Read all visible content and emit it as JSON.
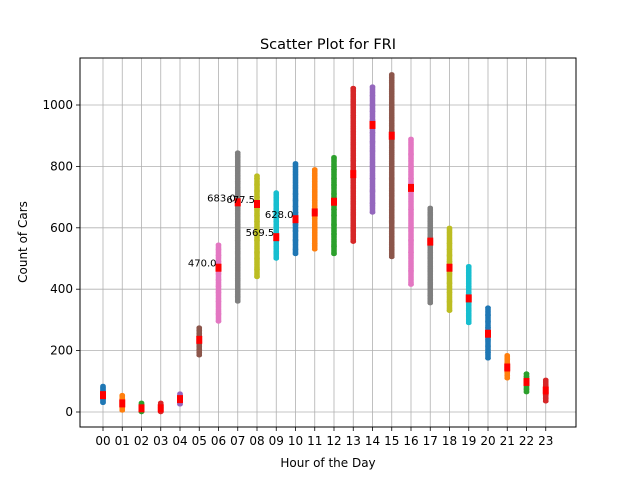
{
  "chart_data": {
    "type": "scatter",
    "title": "Scatter Plot for FRI",
    "xlabel": "Hour of the Day",
    "ylabel": "Count of Cars",
    "categories": [
      "00",
      "01",
      "02",
      "03",
      "04",
      "05",
      "06",
      "07",
      "08",
      "09",
      "10",
      "11",
      "12",
      "13",
      "14",
      "15",
      "16",
      "17",
      "18",
      "19",
      "20",
      "21",
      "22",
      "23"
    ],
    "ylim": [
      -50,
      1150
    ],
    "yticks": [
      0,
      200,
      400,
      600,
      800,
      1000
    ],
    "grid": true,
    "series_colors": [
      "#1f77b4",
      "#ff7f0e",
      "#2ca02c",
      "#d62728",
      "#9467bd",
      "#8c564b",
      "#e377c2",
      "#7f7f7f",
      "#bcbd22",
      "#17becf"
    ],
    "median_color": "#ff0000",
    "series": [
      {
        "hour": "00",
        "min": 30,
        "max": 85,
        "median": 55,
        "values": [
          30,
          35,
          40,
          45,
          50,
          55,
          60,
          65,
          70,
          75,
          80,
          85
        ]
      },
      {
        "hour": "01",
        "min": 5,
        "max": 55,
        "median": 28,
        "values": [
          5,
          10,
          15,
          20,
          25,
          30,
          35,
          40,
          45,
          50,
          55
        ]
      },
      {
        "hour": "02",
        "min": 0,
        "max": 30,
        "median": 12,
        "values": [
          0,
          5,
          10,
          15,
          20,
          25,
          30
        ]
      },
      {
        "hour": "03",
        "min": 0,
        "max": 30,
        "median": 12,
        "values": [
          0,
          5,
          10,
          15,
          20,
          25,
          30
        ]
      },
      {
        "hour": "04",
        "min": 25,
        "max": 60,
        "median": 42,
        "values": [
          25,
          30,
          35,
          40,
          45,
          50,
          55,
          60
        ]
      },
      {
        "hour": "05",
        "min": 185,
        "max": 275,
        "median": 235,
        "values": [
          185,
          195,
          205,
          215,
          225,
          235,
          245,
          255,
          265,
          275
        ]
      },
      {
        "hour": "06",
        "min": 295,
        "max": 545,
        "median": 470,
        "values": [
          295,
          320,
          360,
          390,
          410,
          430,
          450,
          470,
          490,
          510,
          530,
          545
        ]
      },
      {
        "hour": "07",
        "min": 360,
        "max": 845,
        "median": 683,
        "values": [
          360,
          375,
          500,
          520,
          560,
          590,
          610,
          650,
          670,
          690,
          710,
          730,
          750,
          770,
          790,
          845
        ]
      },
      {
        "hour": "08",
        "min": 440,
        "max": 770,
        "median": 677.5,
        "values": [
          440,
          465,
          500,
          520,
          560,
          580,
          620,
          640,
          660,
          680,
          700,
          720,
          740,
          760,
          770
        ]
      },
      {
        "hour": "09",
        "min": 500,
        "max": 715,
        "median": 569.5,
        "values": [
          500,
          520,
          540,
          560,
          580,
          600,
          620,
          640,
          660,
          675,
          715
        ]
      },
      {
        "hour": "10",
        "min": 515,
        "max": 810,
        "median": 628,
        "values": [
          515,
          530,
          560,
          590,
          610,
          630,
          650,
          670,
          690,
          710,
          810
        ]
      },
      {
        "hour": "11",
        "min": 530,
        "max": 790,
        "median": 650,
        "values": [
          530,
          550,
          590,
          610,
          630,
          650,
          670,
          690,
          710,
          730,
          750,
          790
        ]
      },
      {
        "hour": "12",
        "min": 515,
        "max": 830,
        "median": 685,
        "values": [
          515,
          540,
          580,
          610,
          640,
          660,
          690,
          710,
          740,
          760,
          790,
          830
        ]
      },
      {
        "hour": "13",
        "min": 555,
        "max": 1055,
        "median": 775,
        "values": [
          555,
          600,
          640,
          680,
          720,
          760,
          780,
          800,
          820,
          860,
          965,
          1055
        ]
      },
      {
        "hour": "14",
        "min": 650,
        "max": 1060,
        "median": 935,
        "values": [
          650,
          680,
          720,
          760,
          800,
          850,
          880,
          910,
          930,
          950,
          980,
          1000,
          1030,
          1060
        ]
      },
      {
        "hour": "15",
        "min": 505,
        "max": 1100,
        "median": 900,
        "values": [
          505,
          570,
          620,
          680,
          720,
          760,
          800,
          840,
          880,
          920,
          960,
          1000,
          1050,
          1100
        ]
      },
      {
        "hour": "16",
        "min": 415,
        "max": 890,
        "median": 730,
        "values": [
          415,
          460,
          520,
          560,
          600,
          660,
          720,
          760,
          800,
          840,
          890
        ]
      },
      {
        "hour": "17",
        "min": 355,
        "max": 665,
        "median": 555,
        "values": [
          355,
          380,
          420,
          460,
          500,
          520,
          540,
          560,
          580,
          600,
          620,
          640,
          665
        ]
      },
      {
        "hour": "18",
        "min": 330,
        "max": 600,
        "median": 470,
        "values": [
          330,
          360,
          390,
          420,
          450,
          470,
          490,
          510,
          530,
          550,
          600
        ]
      },
      {
        "hour": "19",
        "min": 290,
        "max": 475,
        "median": 370,
        "values": [
          290,
          310,
          330,
          350,
          370,
          390,
          410,
          430,
          450,
          475
        ]
      },
      {
        "hour": "20",
        "min": 175,
        "max": 340,
        "median": 255,
        "values": [
          175,
          195,
          215,
          235,
          255,
          275,
          295,
          315,
          340
        ]
      },
      {
        "hour": "21",
        "min": 110,
        "max": 185,
        "median": 145,
        "values": [
          110,
          120,
          130,
          140,
          150,
          160,
          170,
          185
        ]
      },
      {
        "hour": "22",
        "min": 65,
        "max": 125,
        "median": 98,
        "values": [
          65,
          75,
          85,
          95,
          105,
          115,
          125
        ]
      },
      {
        "hour": "23",
        "min": 35,
        "max": 105,
        "median": 70,
        "values": [
          35,
          45,
          55,
          65,
          75,
          85,
          95,
          105
        ]
      }
    ],
    "annotations": [
      {
        "hour": "06",
        "value": 470,
        "text": "470.0"
      },
      {
        "hour": "07",
        "value": 683,
        "text": "683.0"
      },
      {
        "hour": "08",
        "value": 677.5,
        "text": "677.5"
      },
      {
        "hour": "09",
        "value": 569.5,
        "text": "569.5"
      },
      {
        "hour": "10",
        "value": 628,
        "text": "628.0"
      }
    ]
  }
}
